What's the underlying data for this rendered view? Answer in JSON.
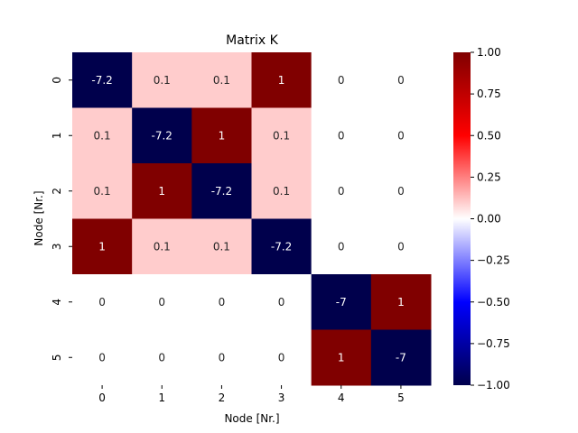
{
  "chart_data": {
    "type": "heatmap",
    "title": "Matrix K",
    "xlabel": "Node [Nr.]",
    "ylabel": "Node [Nr.]",
    "x_categories": [
      "0",
      "1",
      "2",
      "3",
      "4",
      "5"
    ],
    "y_categories": [
      "0",
      "1",
      "2",
      "3",
      "4",
      "5"
    ],
    "values": [
      [
        -7.2,
        0.1,
        0.1,
        1,
        0,
        0
      ],
      [
        0.1,
        -7.2,
        1,
        0.1,
        0,
        0
      ],
      [
        0.1,
        1,
        -7.2,
        0.1,
        0,
        0
      ],
      [
        1,
        0.1,
        0.1,
        -7.2,
        0,
        0
      ],
      [
        0,
        0,
        0,
        0,
        -7,
        1
      ],
      [
        0,
        0,
        0,
        0,
        1,
        -7
      ]
    ],
    "cell_labels": [
      [
        "-7.2",
        "0.1",
        "0.1",
        "1",
        "0",
        "0"
      ],
      [
        "0.1",
        "-7.2",
        "1",
        "0.1",
        "0",
        "0"
      ],
      [
        "0.1",
        "1",
        "-7.2",
        "0.1",
        "0",
        "0"
      ],
      [
        "1",
        "0.1",
        "0.1",
        "-7.2",
        "0",
        "0"
      ],
      [
        "0",
        "0",
        "0",
        "0",
        "-7",
        "1"
      ],
      [
        "0",
        "0",
        "0",
        "0",
        "1",
        "-7"
      ]
    ],
    "colormap": "seismic",
    "vmin": -1,
    "vmax": 1,
    "colorbar": {
      "ticks": [
        1.0,
        0.75,
        0.5,
        0.25,
        0.0,
        -0.25,
        -0.5,
        -0.75,
        -1.0
      ],
      "tick_labels": [
        "1.00",
        "0.75",
        "0.50",
        "0.25",
        "0.00",
        "−0.25",
        "−0.50",
        "−0.75",
        "−1.00"
      ]
    },
    "colors": {
      "negative_end": "#00004c",
      "negative_mid": "#0000ff",
      "center": "#ffffff",
      "positive_mid": "#ff0000",
      "positive_end": "#800000"
    }
  }
}
